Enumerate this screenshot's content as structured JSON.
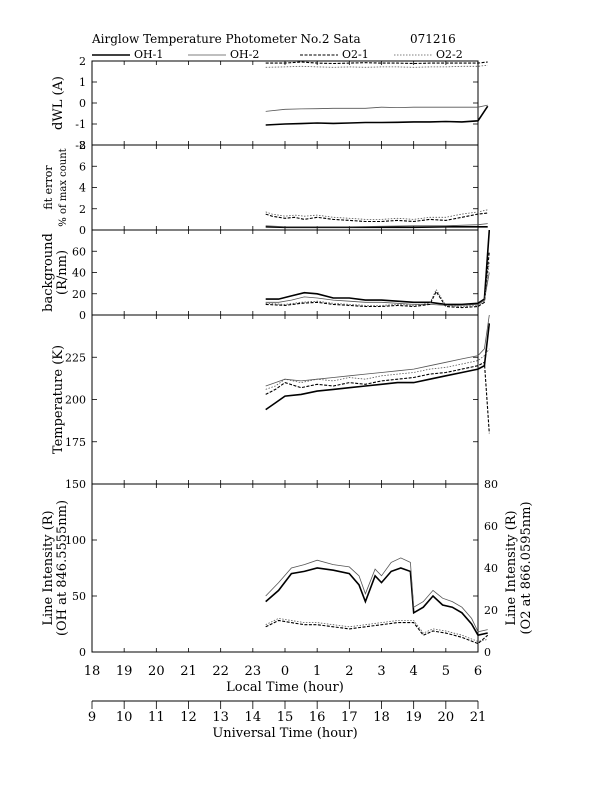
{
  "header": {
    "title": "Airglow Temperature Photometer No.2  Sata",
    "date_code": "071216"
  },
  "legend": [
    {
      "label": "OH-1",
      "color": "#000000",
      "style": "solid-thick"
    },
    {
      "label": "OH-2",
      "color": "#555555",
      "style": "solid-thin"
    },
    {
      "label": "O2-1",
      "color": "#000000",
      "style": "dashed"
    },
    {
      "label": "O2-2",
      "color": "#555555",
      "style": "dotted"
    }
  ],
  "axes": {
    "local_time_label": "Local Time (hour)",
    "local_time_ticks": [
      "18",
      "19",
      "20",
      "21",
      "22",
      "23",
      "0",
      "1",
      "2",
      "3",
      "4",
      "5",
      "6"
    ],
    "universal_time_label": "Universal Time (hour)",
    "universal_time_ticks": [
      "9",
      "10",
      "11",
      "12",
      "13",
      "14",
      "15",
      "16",
      "17",
      "18",
      "19",
      "20",
      "21"
    ]
  },
  "chart_data": [
    {
      "type": "line",
      "ylabel": "dWL  (A)",
      "ylim": [
        -2,
        2
      ],
      "yticks": [
        "2",
        "1",
        "0",
        "-1",
        "-2"
      ],
      "x_unit": "universal time (hour)",
      "series": [
        {
          "name": "OH-1",
          "x": [
            14.4,
            15,
            15.5,
            16,
            16.5,
            17,
            17.5,
            18,
            18.5,
            19,
            19.5,
            20,
            20.5,
            21,
            21.3
          ],
          "y": [
            -1.05,
            -1.0,
            -0.98,
            -0.95,
            -0.97,
            -0.95,
            -0.93,
            -0.93,
            -0.92,
            -0.9,
            -0.9,
            -0.88,
            -0.9,
            -0.85,
            -0.15
          ]
        },
        {
          "name": "OH-2",
          "x": [
            14.4,
            15,
            15.5,
            16,
            16.5,
            17,
            17.5,
            18,
            18.5,
            19,
            19.5,
            20,
            20.5,
            21,
            21.3
          ],
          "y": [
            -0.4,
            -0.3,
            -0.28,
            -0.27,
            -0.25,
            -0.25,
            -0.25,
            -0.2,
            -0.22,
            -0.2,
            -0.2,
            -0.2,
            -0.2,
            -0.2,
            -0.1
          ]
        },
        {
          "name": "O2-1",
          "x": [
            14.4,
            15,
            15.5,
            16,
            16.5,
            17,
            17.5,
            18,
            18.5,
            19,
            19.5,
            20,
            20.5,
            21,
            21.3
          ],
          "y": [
            1.9,
            1.9,
            1.95,
            1.9,
            1.88,
            1.9,
            1.92,
            1.9,
            1.9,
            1.88,
            1.9,
            1.9,
            1.9,
            1.9,
            1.95
          ]
        },
        {
          "name": "O2-2",
          "x": [
            14.4,
            15,
            15.5,
            16,
            16.5,
            17,
            17.5,
            18,
            18.5,
            19,
            19.5,
            20,
            20.5,
            21,
            21.3
          ],
          "y": [
            1.7,
            1.72,
            1.75,
            1.72,
            1.7,
            1.72,
            1.7,
            1.72,
            1.72,
            1.7,
            1.72,
            1.72,
            1.75,
            1.75,
            1.8
          ]
        }
      ]
    },
    {
      "type": "line",
      "ylabel": "fit error",
      "ylabel2": "% of max count",
      "ylim": [
        0,
        8
      ],
      "yticks": [
        "8",
        "6",
        "4",
        "2",
        "0"
      ],
      "x_unit": "universal time (hour)",
      "series": [
        {
          "name": "OH-1",
          "x": [
            14.4,
            15,
            16,
            17,
            18,
            19,
            20,
            21,
            21.3
          ],
          "y": [
            0.3,
            0.25,
            0.25,
            0.25,
            0.25,
            0.25,
            0.3,
            0.3,
            0.3
          ]
        },
        {
          "name": "OH-2",
          "x": [
            14.4,
            15,
            16,
            17,
            18,
            19,
            20,
            21,
            21.3
          ],
          "y": [
            0.4,
            0.3,
            0.3,
            0.3,
            0.35,
            0.4,
            0.4,
            0.5,
            0.6
          ]
        },
        {
          "name": "O2-1",
          "x": [
            14.4,
            14.6,
            15,
            15.3,
            15.6,
            16,
            16.5,
            17,
            17.5,
            18,
            18.5,
            19,
            19.5,
            20,
            20.5,
            21,
            21.3
          ],
          "y": [
            1.5,
            1.3,
            1.1,
            1.2,
            1.0,
            1.2,
            1.0,
            0.9,
            0.8,
            0.8,
            0.9,
            0.8,
            1.0,
            0.9,
            1.2,
            1.5,
            1.6
          ]
        },
        {
          "name": "O2-2",
          "x": [
            14.4,
            14.6,
            15,
            15.3,
            15.6,
            16,
            16.5,
            17,
            17.5,
            18,
            18.5,
            19,
            19.5,
            20,
            20.5,
            21,
            21.3
          ],
          "y": [
            1.7,
            1.5,
            1.3,
            1.4,
            1.3,
            1.4,
            1.2,
            1.1,
            1.0,
            1.0,
            1.1,
            1.0,
            1.2,
            1.2,
            1.5,
            1.7,
            1.9
          ]
        }
      ]
    },
    {
      "type": "line",
      "ylabel": "background",
      "ylabel2": "(R/nm)",
      "ylim": [
        0,
        80
      ],
      "yticks": [
        "60",
        "40",
        "20",
        "0"
      ],
      "x_unit": "universal time (hour)",
      "series": [
        {
          "name": "OH-1",
          "x": [
            14.4,
            14.8,
            15.2,
            15.6,
            16,
            16.5,
            17,
            17.5,
            18,
            18.5,
            19,
            19.5,
            20,
            20.5,
            21,
            21.2,
            21.35
          ],
          "y": [
            15,
            15,
            18,
            21,
            20,
            16,
            16,
            14,
            14,
            13,
            12,
            12,
            10,
            10,
            11,
            15,
            80
          ]
        },
        {
          "name": "OH-2",
          "x": [
            14.4,
            14.8,
            15.2,
            15.6,
            16,
            16.5,
            17,
            17.5,
            18,
            18.5,
            19,
            19.5,
            20,
            20.5,
            21,
            21.2,
            21.35
          ],
          "y": [
            12,
            12,
            14,
            17,
            16,
            14,
            13,
            12,
            12,
            11,
            10,
            10,
            9,
            9,
            10,
            14,
            40
          ]
        },
        {
          "name": "O2-1",
          "x": [
            14.4,
            15,
            15.5,
            16,
            16.5,
            17,
            17.5,
            18,
            18.5,
            19,
            19.5,
            19.7,
            20,
            20.5,
            21,
            21.2,
            21.35
          ],
          "y": [
            10,
            9,
            11,
            12,
            10,
            9,
            8,
            8,
            9,
            8,
            10,
            22,
            8,
            7,
            8,
            12,
            60
          ]
        },
        {
          "name": "O2-2",
          "x": [
            14.4,
            15,
            15.5,
            16,
            16.5,
            17,
            17.5,
            18,
            18.5,
            19,
            19.5,
            19.7,
            20,
            20.5,
            21,
            21.2,
            21.35
          ],
          "y": [
            11,
            10,
            12,
            13,
            11,
            10,
            9,
            9,
            10,
            9,
            11,
            24,
            9,
            8,
            9,
            13,
            50
          ]
        }
      ]
    },
    {
      "type": "line",
      "ylabel": "Temperature (K)",
      "ylim": [
        150,
        250
      ],
      "yticks": [
        "225",
        "200",
        "175"
      ],
      "x_unit": "universal time (hour)",
      "series": [
        {
          "name": "OH-1",
          "x": [
            14.4,
            14.7,
            15,
            15.5,
            16,
            16.5,
            17,
            17.5,
            18,
            18.5,
            19,
            19.5,
            20,
            20.5,
            21,
            21.2,
            21.35
          ],
          "y": [
            194,
            198,
            202,
            203,
            205,
            206,
            207,
            208,
            209,
            210,
            210,
            212,
            214,
            216,
            218,
            220,
            245
          ]
        },
        {
          "name": "OH-2",
          "x": [
            14.4,
            14.7,
            15,
            15.5,
            16,
            16.5,
            17,
            17.5,
            18,
            18.5,
            19,
            19.5,
            20,
            20.5,
            21,
            21.2,
            21.35
          ],
          "y": [
            208,
            210,
            212,
            211,
            212,
            213,
            214,
            215,
            216,
            217,
            218,
            220,
            222,
            224,
            226,
            230,
            250
          ]
        },
        {
          "name": "O2-1",
          "x": [
            14.4,
            14.7,
            15,
            15.5,
            16,
            16.5,
            17,
            17.5,
            18,
            18.5,
            19,
            19.5,
            20,
            20.5,
            21,
            21.2,
            21.35
          ],
          "y": [
            203,
            206,
            210,
            207,
            209,
            208,
            210,
            209,
            211,
            212,
            213,
            215,
            216,
            218,
            220,
            222,
            180
          ]
        },
        {
          "name": "O2-2",
          "x": [
            14.4,
            14.7,
            15,
            15.5,
            16,
            16.5,
            17,
            17.5,
            18,
            18.5,
            19,
            19.5,
            20,
            20.5,
            21,
            21.2,
            21.35
          ],
          "y": [
            206,
            208,
            212,
            210,
            212,
            211,
            213,
            212,
            214,
            215,
            216,
            218,
            219,
            221,
            223,
            226,
            230
          ]
        }
      ]
    },
    {
      "type": "line",
      "ylabel": "Line Intensity (R)",
      "ylabel2": "(OH at 846.5555nm)",
      "ylabel_right": "Line Intensity (R)",
      "ylabel_right2": "(O2 at 866.0595nm)",
      "ylim": [
        0,
        150
      ],
      "ylim_right": [
        0,
        80
      ],
      "yticks": [
        "150",
        "100",
        "50",
        "0"
      ],
      "yticks_right": [
        "80",
        "60",
        "40",
        "20",
        "0"
      ],
      "x_unit": "universal time (hour)",
      "series": [
        {
          "name": "OH-1",
          "axis": "left",
          "x": [
            14.4,
            14.8,
            15.2,
            15.6,
            16,
            16.5,
            17,
            17.3,
            17.5,
            17.8,
            18,
            18.3,
            18.6,
            18.9,
            19,
            19.3,
            19.6,
            19.9,
            20.2,
            20.5,
            20.8,
            21,
            21.3
          ],
          "y": [
            45,
            55,
            70,
            72,
            75,
            73,
            70,
            60,
            45,
            68,
            62,
            72,
            75,
            72,
            35,
            40,
            50,
            42,
            40,
            35,
            25,
            15,
            17
          ]
        },
        {
          "name": "OH-2",
          "axis": "left",
          "x": [
            14.4,
            14.8,
            15.2,
            15.6,
            16,
            16.5,
            17,
            17.3,
            17.5,
            17.8,
            18,
            18.3,
            18.6,
            18.9,
            19,
            19.3,
            19.6,
            19.9,
            20.2,
            20.5,
            20.8,
            21,
            21.3
          ],
          "y": [
            50,
            62,
            75,
            78,
            82,
            78,
            76,
            68,
            52,
            74,
            68,
            80,
            84,
            80,
            40,
            45,
            55,
            48,
            45,
            40,
            30,
            18,
            20
          ]
        },
        {
          "name": "O2-1",
          "axis": "right",
          "x": [
            14.4,
            14.8,
            15.2,
            15.6,
            16,
            16.5,
            17,
            17.5,
            18,
            18.5,
            19,
            19.3,
            19.6,
            20,
            20.5,
            21,
            21.3
          ],
          "y": [
            12,
            15,
            14,
            13,
            13,
            12,
            11,
            12,
            13,
            14,
            14,
            8,
            10,
            9,
            7,
            4,
            8
          ]
        },
        {
          "name": "O2-2",
          "axis": "right",
          "x": [
            14.4,
            14.8,
            15.2,
            15.6,
            16,
            16.5,
            17,
            17.5,
            18,
            18.5,
            19,
            19.3,
            19.6,
            20,
            20.5,
            21,
            21.3
          ],
          "y": [
            13,
            16,
            15,
            14,
            14,
            13,
            12,
            13,
            14,
            15,
            15,
            9,
            11,
            10,
            8,
            5,
            6
          ]
        }
      ]
    }
  ]
}
